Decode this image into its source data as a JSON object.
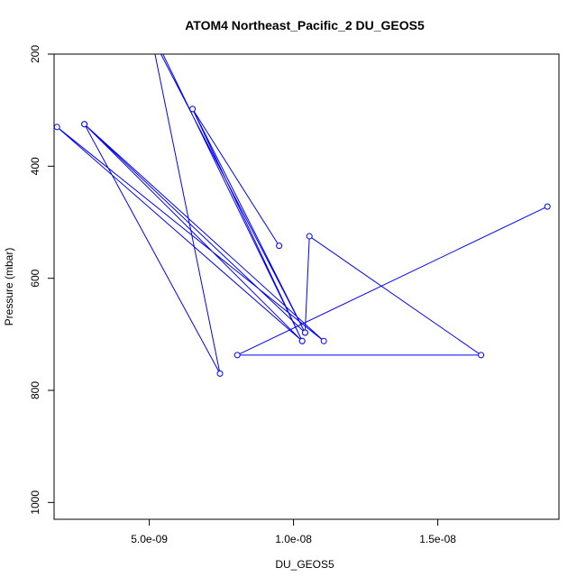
{
  "chart_data": {
    "type": "line",
    "title": "ATOM4 Northeast_Pacific_2 DU_GEOS5",
    "xlabel": "DU_GEOS5",
    "ylabel": "Pressure (mbar)",
    "xlim": [
      1.7e-09,
      1.92e-08
    ],
    "ylim": [
      1030,
      200
    ],
    "y_reversed": true,
    "x_ticks": [
      {
        "value": 5e-09,
        "label": "5.0e-09"
      },
      {
        "value": 1e-08,
        "label": "1.0e-08"
      },
      {
        "value": 1.5e-08,
        "label": "1.5e-08"
      }
    ],
    "y_ticks": [
      {
        "value": 200,
        "label": "200"
      },
      {
        "value": 400,
        "label": "400"
      },
      {
        "value": 600,
        "label": "600"
      },
      {
        "value": 800,
        "label": "800"
      },
      {
        "value": 1000,
        "label": "1000"
      }
    ],
    "series": [
      {
        "color": "#0000ff",
        "marker": "open-circle",
        "points": [
          {
            "x": 5.1e-09,
            "y": 170
          },
          {
            "x": 1.04e-08,
            "y": 697
          },
          {
            "x": 2.75e-09,
            "y": 325
          },
          {
            "x": 7.45e-09,
            "y": 770
          },
          {
            "x": 5e-09,
            "y": 150
          },
          {
            "x": 1.03e-08,
            "y": 712
          },
          {
            "x": 1.8e-09,
            "y": 330
          },
          {
            "x": 1.105e-08,
            "y": 712
          },
          {
            "x": 2.75e-09,
            "y": 325
          },
          {
            "x": 1.03e-08,
            "y": 712
          },
          {
            "x": 6.5e-09,
            "y": 298
          },
          {
            "x": 9.5e-09,
            "y": 542
          },
          {
            "x": 6.5e-09,
            "y": 298
          },
          {
            "x": 1.04e-08,
            "y": 697
          },
          {
            "x": 1.055e-08,
            "y": 525
          },
          {
            "x": 1.65e-08,
            "y": 737
          },
          {
            "x": 8.05e-09,
            "y": 737
          },
          {
            "x": 1.88e-08,
            "y": 472
          }
        ]
      }
    ]
  }
}
